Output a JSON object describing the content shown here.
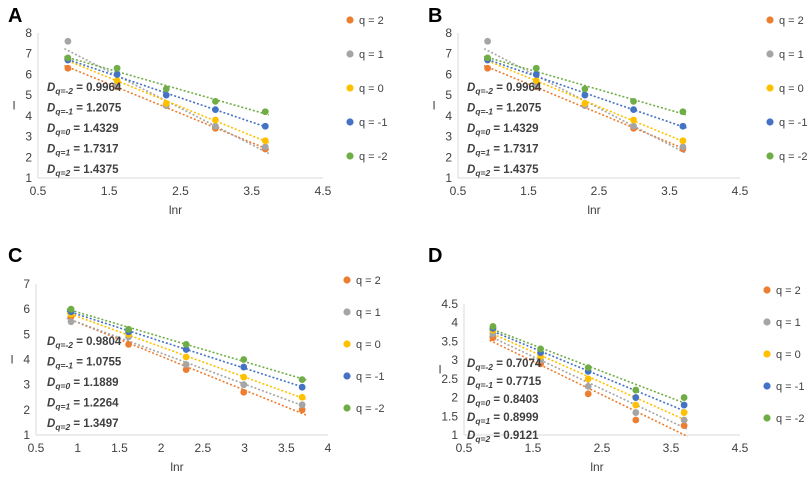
{
  "colors": {
    "q2": "#ED7D31",
    "q1": "#A5A5A5",
    "q0": "#FFC000",
    "qm1": "#4472C4",
    "qm2": "#70AD47",
    "axis": "#D9D9D9",
    "text": "#404040"
  },
  "legend": [
    "q = 2",
    "q = 1",
    "q = 0",
    "q = -1",
    "q = -2"
  ],
  "chart_data": [
    {
      "type": "scatter",
      "panel": "A",
      "xlabel": "lnr",
      "ylabel": "I",
      "xlim": [
        0.5,
        4.5
      ],
      "ylim": [
        1,
        8
      ],
      "xticks": [
        "0.5",
        "1.5",
        "2.5",
        "3.5",
        "4.5"
      ],
      "yticks": [
        "1",
        "2",
        "3",
        "4",
        "5",
        "6",
        "7",
        "8"
      ],
      "x": [
        0.92,
        1.61,
        2.3,
        2.99,
        3.69
      ],
      "series": [
        {
          "name": "q = 2",
          "values": [
            6.3,
            5.4,
            4.5,
            3.4,
            2.4
          ]
        },
        {
          "name": "q = 1",
          "values": [
            7.6,
            5.5,
            4.5,
            3.5,
            2.5
          ]
        },
        {
          "name": "q = 0",
          "values": [
            6.7,
            5.7,
            4.6,
            3.8,
            2.8
          ]
        },
        {
          "name": "q = -1",
          "values": [
            6.7,
            6.0,
            5.0,
            4.3,
            3.5
          ]
        },
        {
          "name": "q = -2",
          "values": [
            6.8,
            6.3,
            5.3,
            4.7,
            4.2
          ]
        }
      ],
      "annotations": [
        {
          "sub": "q=-2",
          "value": "0.9964"
        },
        {
          "sub": "q=-1",
          "value": "1.2075"
        },
        {
          "sub": "q=0",
          "value": "1.4329"
        },
        {
          "sub": "q=1",
          "value": "1.7317"
        },
        {
          "sub": "q=2",
          "value": "1.4375"
        }
      ]
    },
    {
      "type": "scatter",
      "panel": "B",
      "xlabel": "lnr",
      "ylabel": "I",
      "xlim": [
        0.5,
        4.5
      ],
      "ylim": [
        1,
        8
      ],
      "xticks": [
        "0.5",
        "1.5",
        "2.5",
        "3.5",
        "4.5"
      ],
      "yticks": [
        "1",
        "2",
        "3",
        "4",
        "5",
        "6",
        "7",
        "8"
      ],
      "x": [
        0.92,
        1.61,
        2.3,
        2.99,
        3.69
      ],
      "series": [
        {
          "name": "q = 2",
          "values": [
            6.3,
            5.4,
            4.5,
            3.4,
            2.4
          ]
        },
        {
          "name": "q = 1",
          "values": [
            7.6,
            5.5,
            4.5,
            3.5,
            2.5
          ]
        },
        {
          "name": "q = 0",
          "values": [
            6.7,
            5.7,
            4.6,
            3.8,
            2.8
          ]
        },
        {
          "name": "q = -1",
          "values": [
            6.7,
            6.0,
            5.0,
            4.3,
            3.5
          ]
        },
        {
          "name": "q = -2",
          "values": [
            6.8,
            6.3,
            5.3,
            4.7,
            4.2
          ]
        }
      ],
      "annotations": [
        {
          "sub": "q=-2",
          "value": "0.9964"
        },
        {
          "sub": "q=-1",
          "value": "1.2075"
        },
        {
          "sub": "q=0",
          "value": "1.4329"
        },
        {
          "sub": "q=1",
          "value": "1.7317"
        },
        {
          "sub": "q=2",
          "value": "1.4375"
        }
      ]
    },
    {
      "type": "scatter",
      "panel": "C",
      "xlabel": "lnr",
      "ylabel": "I",
      "xlim": [
        0.5,
        4
      ],
      "ylim": [
        1,
        7
      ],
      "xticks": [
        "0.5",
        "1",
        "1.5",
        "2",
        "2.5",
        "3",
        "3.5",
        "4"
      ],
      "yticks": [
        "1",
        "2",
        "3",
        "4",
        "5",
        "6",
        "7"
      ],
      "x": [
        0.92,
        1.61,
        2.3,
        2.99,
        3.69
      ],
      "series": [
        {
          "name": "q = 2",
          "values": [
            5.7,
            4.6,
            3.6,
            2.7,
            2.0
          ]
        },
        {
          "name": "q = 1",
          "values": [
            5.5,
            4.9,
            3.8,
            3.0,
            2.2
          ]
        },
        {
          "name": "q = 0",
          "values": [
            5.8,
            5.0,
            4.1,
            3.3,
            2.5
          ]
        },
        {
          "name": "q = -1",
          "values": [
            5.9,
            5.1,
            4.4,
            3.7,
            2.9
          ]
        },
        {
          "name": "q = -2",
          "values": [
            6.0,
            5.2,
            4.6,
            4.0,
            3.2
          ]
        }
      ],
      "annotations": [
        {
          "sub": "q=-2",
          "value": "0.9804"
        },
        {
          "sub": "q=-1",
          "value": "1.0755"
        },
        {
          "sub": "q=0",
          "value": "1.1889"
        },
        {
          "sub": "q=1",
          "value": "1.2264"
        },
        {
          "sub": "q=2",
          "value": "1.3497"
        }
      ]
    },
    {
      "type": "scatter",
      "panel": "D",
      "xlabel": "lnr",
      "ylabel": "I",
      "xlim": [
        0.5,
        4.5
      ],
      "ylim": [
        1,
        4.5
      ],
      "xticks": [
        "0.5",
        "1.5",
        "2.5",
        "3.5",
        "4.5"
      ],
      "yticks": [
        "1",
        "1.5",
        "2",
        "2.5",
        "3",
        "3.5",
        "4",
        "4.5"
      ],
      "x": [
        0.92,
        1.61,
        2.3,
        2.99,
        3.69
      ],
      "series": [
        {
          "name": "q = 2",
          "values": [
            3.6,
            2.9,
            2.1,
            1.4,
            1.25
          ]
        },
        {
          "name": "q = 1",
          "values": [
            3.7,
            3.0,
            2.3,
            1.6,
            1.4
          ]
        },
        {
          "name": "q = 0",
          "values": [
            3.8,
            3.1,
            2.5,
            1.8,
            1.6
          ]
        },
        {
          "name": "q = -1",
          "values": [
            3.85,
            3.2,
            2.7,
            2.0,
            1.8
          ]
        },
        {
          "name": "q = -2",
          "values": [
            3.9,
            3.3,
            2.8,
            2.2,
            2.0
          ]
        }
      ],
      "annotations": [
        {
          "sub": "q=-2",
          "value": "0.7074"
        },
        {
          "sub": "q=-1",
          "value": "0.7715"
        },
        {
          "sub": "q=0",
          "value": "0.8403"
        },
        {
          "sub": "q=1",
          "value": "0.8999"
        },
        {
          "sub": "q=2",
          "value": "0.9121"
        }
      ]
    }
  ]
}
